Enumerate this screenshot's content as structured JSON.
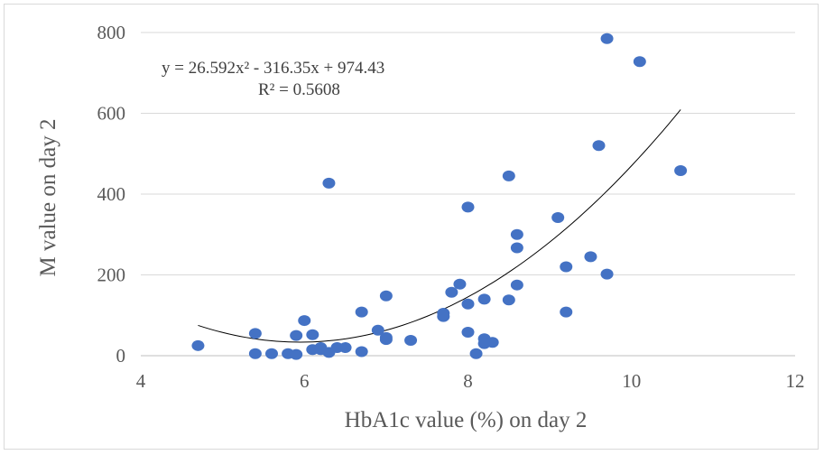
{
  "chart_data": {
    "type": "scatter",
    "xlabel": "HbA1c value (%) on day 2",
    "ylabel": "M value on day 2",
    "xlim": [
      4,
      12
    ],
    "ylim": [
      0,
      800
    ],
    "x_ticks": [
      4,
      6,
      8,
      10,
      12
    ],
    "y_ticks": [
      0,
      200,
      400,
      600,
      800
    ],
    "grid": "horizontal",
    "marker_color": "#4472c4",
    "trendline": {
      "type": "polynomial",
      "order": 2,
      "coefficients": [
        26.592,
        -316.35,
        974.43
      ],
      "x_range": [
        4.7,
        10.6
      ],
      "color": "#000000",
      "equation_text": "y = 26.592x² - 316.35x + 974.43",
      "r2_text": "R² = 0.5608"
    },
    "series": [
      {
        "points": [
          [
            4.7,
            25
          ],
          [
            5.4,
            55
          ],
          [
            5.4,
            5
          ],
          [
            5.6,
            5
          ],
          [
            5.8,
            5
          ],
          [
            5.9,
            3
          ],
          [
            5.9,
            50
          ],
          [
            6.0,
            87
          ],
          [
            6.1,
            52
          ],
          [
            6.1,
            15
          ],
          [
            6.2,
            20
          ],
          [
            6.2,
            15
          ],
          [
            6.3,
            8
          ],
          [
            6.3,
            427
          ],
          [
            6.4,
            20
          ],
          [
            6.5,
            20
          ],
          [
            6.7,
            108
          ],
          [
            6.7,
            10
          ],
          [
            6.9,
            63
          ],
          [
            7.0,
            148
          ],
          [
            7.0,
            45
          ],
          [
            7.0,
            40
          ],
          [
            7.3,
            38
          ],
          [
            7.7,
            105
          ],
          [
            7.7,
            97
          ],
          [
            7.8,
            157
          ],
          [
            7.9,
            177
          ],
          [
            8.0,
            368
          ],
          [
            8.0,
            128
          ],
          [
            8.0,
            58
          ],
          [
            8.1,
            5
          ],
          [
            8.2,
            140
          ],
          [
            8.2,
            42
          ],
          [
            8.2,
            30
          ],
          [
            8.3,
            33
          ],
          [
            8.5,
            445
          ],
          [
            8.5,
            138
          ],
          [
            8.6,
            300
          ],
          [
            8.6,
            267
          ],
          [
            8.6,
            175
          ],
          [
            9.1,
            342
          ],
          [
            9.2,
            220
          ],
          [
            9.2,
            108
          ],
          [
            9.5,
            245
          ],
          [
            9.6,
            520
          ],
          [
            9.7,
            785
          ],
          [
            9.7,
            202
          ],
          [
            10.1,
            728
          ],
          [
            10.6,
            458
          ]
        ]
      }
    ]
  }
}
